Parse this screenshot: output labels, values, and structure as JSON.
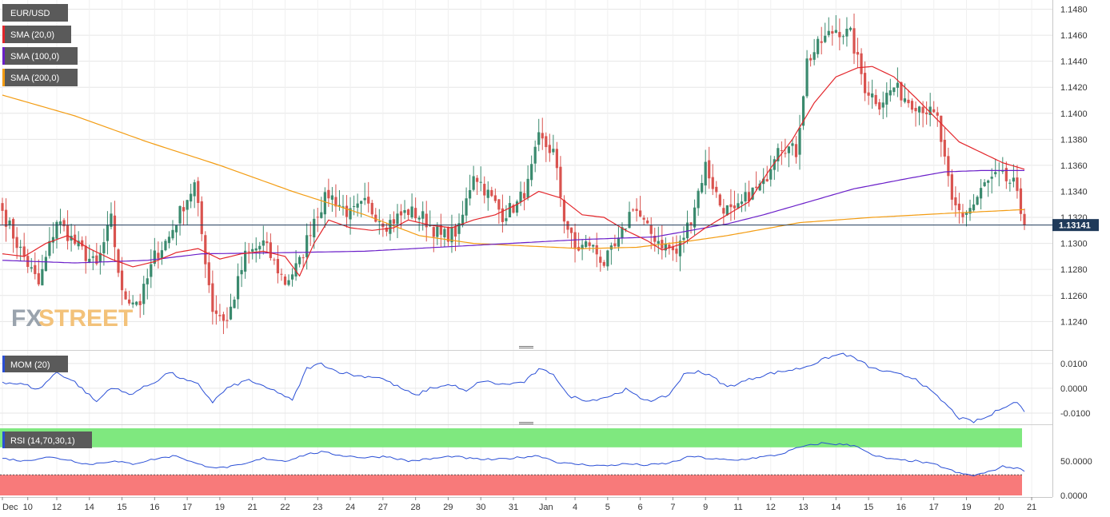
{
  "colors": {
    "up": "#3a8a6e",
    "down": "#d9534f",
    "sma20": "#e3262b",
    "sma100": "#6a1fc9",
    "sma200": "#f39c12",
    "mom": "#2a4fd6",
    "rsi": "#2a4fd6",
    "rsi_overbought": "#7fe87f",
    "rsi_oversold": "#f87a7a",
    "price_line": "#1f3a5a",
    "legend_bg": "#5a5a5a",
    "grid": "#e6e6e6",
    "watermark_fx": "#9aa3ad",
    "watermark_street": "#f3c27a"
  },
  "legends": {
    "pair": "EUR/USD",
    "sma20": "SMA (20,0)",
    "sma100": "SMA (100,0)",
    "sma200": "SMA (200,0)",
    "mom": "MOM (20)",
    "rsi": "RSI (14,70,30,1)"
  },
  "watermark": {
    "fx": "FX",
    "street": "STREET"
  },
  "last_price_label": "1.13141",
  "chart_data": {
    "type": "candlestick",
    "symbol": "EUR/USD",
    "last_price": 1.13141,
    "price_axis": {
      "ylim": [
        1.1223,
        1.1484
      ],
      "ticks": [
        "1.1480",
        "1.1460",
        "1.1440",
        "1.1420",
        "1.1400",
        "1.1380",
        "1.1360",
        "1.1340",
        "1.1320",
        "1.1300",
        "1.1280",
        "1.1260",
        "1.1240"
      ]
    },
    "mom_axis": {
      "ylim": [
        -0.0142,
        0.0148
      ],
      "ticks": [
        "0.0100",
        "0.0000",
        "-0.0100"
      ]
    },
    "rsi_axis": {
      "ylim": [
        0,
        100
      ],
      "ticks": [
        "50.0000",
        "0.0000"
      ],
      "overbought": 70,
      "oversold": 30
    },
    "x_labels": [
      {
        "label": "Dec",
        "i": 0
      },
      {
        "label": "10",
        "i": 7
      },
      {
        "label": "12",
        "i": 15
      },
      {
        "label": "14",
        "i": 24
      },
      {
        "label": "15",
        "i": 33
      },
      {
        "label": "16",
        "i": 42
      },
      {
        "label": "17",
        "i": 51
      },
      {
        "label": "19",
        "i": 60
      },
      {
        "label": "21",
        "i": 69
      },
      {
        "label": "22",
        "i": 78
      },
      {
        "label": "23",
        "i": 87
      },
      {
        "label": "24",
        "i": 96
      },
      {
        "label": "27",
        "i": 105
      },
      {
        "label": "28",
        "i": 114
      },
      {
        "label": "29",
        "i": 123
      },
      {
        "label": "30",
        "i": 132
      },
      {
        "label": "31",
        "i": 141
      },
      {
        "label": "Jan",
        "i": 150
      },
      {
        "label": "4",
        "i": 158
      },
      {
        "label": "5",
        "i": 167
      },
      {
        "label": "6",
        "i": 176
      },
      {
        "label": "7",
        "i": 185
      },
      {
        "label": "9",
        "i": 194
      },
      {
        "label": "11",
        "i": 203
      },
      {
        "label": "12",
        "i": 212
      },
      {
        "label": "13",
        "i": 221
      },
      {
        "label": "14",
        "i": 230
      },
      {
        "label": "15",
        "i": 239
      },
      {
        "label": "16",
        "i": 248
      },
      {
        "label": "17",
        "i": 257
      },
      {
        "label": "19",
        "i": 266
      },
      {
        "label": "20",
        "i": 275
      },
      {
        "label": "21",
        "i": 284
      }
    ],
    "close_anchors": [
      [
        0,
        1.1325
      ],
      [
        4,
        1.13
      ],
      [
        10,
        1.1268
      ],
      [
        15,
        1.1318
      ],
      [
        20,
        1.13
      ],
      [
        26,
        1.1282
      ],
      [
        30,
        1.1318
      ],
      [
        33,
        1.126
      ],
      [
        38,
        1.1255
      ],
      [
        42,
        1.129
      ],
      [
        46,
        1.1305
      ],
      [
        50,
        1.133
      ],
      [
        53,
        1.1345
      ],
      [
        58,
        1.125
      ],
      [
        62,
        1.124
      ],
      [
        67,
        1.129
      ],
      [
        72,
        1.13
      ],
      [
        78,
        1.127
      ],
      [
        82,
        1.1285
      ],
      [
        86,
        1.132
      ],
      [
        90,
        1.1338
      ],
      [
        96,
        1.1322
      ],
      [
        100,
        1.133
      ],
      [
        106,
        1.1315
      ],
      [
        112,
        1.1325
      ],
      [
        116,
        1.132
      ],
      [
        121,
        1.1305
      ],
      [
        126,
        1.131
      ],
      [
        130,
        1.1355
      ],
      [
        134,
        1.1338
      ],
      [
        138,
        1.1322
      ],
      [
        142,
        1.133
      ],
      [
        145,
        1.1345
      ],
      [
        148,
        1.138
      ],
      [
        152,
        1.137
      ],
      [
        155,
        1.132
      ],
      [
        158,
        1.1295
      ],
      [
        162,
        1.13
      ],
      [
        166,
        1.1285
      ],
      [
        170,
        1.13
      ],
      [
        174,
        1.133
      ],
      [
        178,
        1.131
      ],
      [
        182,
        1.13
      ],
      [
        186,
        1.1292
      ],
      [
        190,
        1.132
      ],
      [
        194,
        1.136
      ],
      [
        198,
        1.133
      ],
      [
        202,
        1.1322
      ],
      [
        206,
        1.1338
      ],
      [
        210,
        1.1345
      ],
      [
        214,
        1.1378
      ],
      [
        219,
        1.137
      ],
      [
        222,
        1.144
      ],
      [
        226,
        1.1455
      ],
      [
        230,
        1.1465
      ],
      [
        234,
        1.146
      ],
      [
        238,
        1.142
      ],
      [
        242,
        1.1408
      ],
      [
        246,
        1.142
      ],
      [
        250,
        1.141
      ],
      [
        254,
        1.1405
      ],
      [
        258,
        1.1395
      ],
      [
        262,
        1.133
      ],
      [
        265,
        1.1322
      ],
      [
        268,
        1.133
      ],
      [
        271,
        1.1345
      ],
      [
        275,
        1.1352
      ],
      [
        279,
        1.1345
      ],
      [
        282,
        1.1314
      ]
    ],
    "sma20_anchors": [
      [
        0,
        1.1292
      ],
      [
        6,
        1.129
      ],
      [
        12,
        1.13
      ],
      [
        18,
        1.1306
      ],
      [
        24,
        1.1296
      ],
      [
        30,
        1.1288
      ],
      [
        36,
        1.1282
      ],
      [
        42,
        1.1286
      ],
      [
        48,
        1.1293
      ],
      [
        54,
        1.1296
      ],
      [
        60,
        1.1288
      ],
      [
        66,
        1.1292
      ],
      [
        72,
        1.1294
      ],
      [
        78,
        1.129
      ],
      [
        82,
        1.1275
      ],
      [
        86,
        1.13
      ],
      [
        90,
        1.1318
      ],
      [
        96,
        1.1312
      ],
      [
        102,
        1.131
      ],
      [
        108,
        1.1312
      ],
      [
        112,
        1.1318
      ],
      [
        118,
        1.1314
      ],
      [
        124,
        1.1312
      ],
      [
        130,
        1.1318
      ],
      [
        136,
        1.1322
      ],
      [
        142,
        1.133
      ],
      [
        148,
        1.134
      ],
      [
        154,
        1.1335
      ],
      [
        160,
        1.1322
      ],
      [
        166,
        1.132
      ],
      [
        172,
        1.131
      ],
      [
        178,
        1.1302
      ],
      [
        182,
        1.1295
      ],
      [
        188,
        1.13
      ],
      [
        194,
        1.1312
      ],
      [
        200,
        1.1322
      ],
      [
        206,
        1.1332
      ],
      [
        212,
        1.1358
      ],
      [
        218,
        1.138
      ],
      [
        224,
        1.1408
      ],
      [
        230,
        1.1428
      ],
      [
        236,
        1.1435
      ],
      [
        240,
        1.1436
      ],
      [
        246,
        1.1428
      ],
      [
        252,
        1.1412
      ],
      [
        258,
        1.1395
      ],
      [
        264,
        1.1378
      ],
      [
        270,
        1.137
      ],
      [
        276,
        1.1362
      ],
      [
        282,
        1.1357
      ]
    ],
    "sma100_anchors": [
      [
        0,
        1.1287
      ],
      [
        20,
        1.1285
      ],
      [
        40,
        1.1287
      ],
      [
        55,
        1.1292
      ],
      [
        80,
        1.1293
      ],
      [
        100,
        1.1294
      ],
      [
        120,
        1.1297
      ],
      [
        140,
        1.13
      ],
      [
        160,
        1.1303
      ],
      [
        180,
        1.1305
      ],
      [
        200,
        1.1315
      ],
      [
        210,
        1.1322
      ],
      [
        220,
        1.133
      ],
      [
        235,
        1.1342
      ],
      [
        250,
        1.135
      ],
      [
        260,
        1.1355
      ],
      [
        270,
        1.1356
      ],
      [
        282,
        1.1356
      ]
    ],
    "sma200_anchors": [
      [
        0,
        1.1414
      ],
      [
        20,
        1.1398
      ],
      [
        40,
        1.1378
      ],
      [
        60,
        1.136
      ],
      [
        80,
        1.134
      ],
      [
        100,
        1.1322
      ],
      [
        115,
        1.1306
      ],
      [
        130,
        1.13
      ],
      [
        145,
        1.1298
      ],
      [
        160,
        1.1296
      ],
      [
        175,
        1.1297
      ],
      [
        190,
        1.1302
      ],
      [
        200,
        1.1306
      ],
      [
        220,
        1.1316
      ],
      [
        240,
        1.132
      ],
      [
        260,
        1.1323
      ],
      [
        282,
        1.1326
      ]
    ],
    "mom_anchors": [
      [
        0,
        0.0025
      ],
      [
        6,
        0.0015
      ],
      [
        10,
        -0.0005
      ],
      [
        15,
        0.0065
      ],
      [
        20,
        0.0025
      ],
      [
        26,
        -0.0055
      ],
      [
        30,
        0.0005
      ],
      [
        35,
        -0.0025
      ],
      [
        42,
        0.0025
      ],
      [
        46,
        0.0065
      ],
      [
        50,
        0.0035
      ],
      [
        54,
        0.0015
      ],
      [
        58,
        -0.0055
      ],
      [
        62,
        0.0
      ],
      [
        68,
        0.0035
      ],
      [
        72,
        0.0005
      ],
      [
        76,
        -0.0015
      ],
      [
        80,
        -0.005
      ],
      [
        84,
        0.008
      ],
      [
        88,
        0.01
      ],
      [
        92,
        0.007
      ],
      [
        98,
        0.005
      ],
      [
        104,
        0.0045
      ],
      [
        110,
        0.0
      ],
      [
        114,
        -0.003
      ],
      [
        118,
        0.0
      ],
      [
        124,
        0.0015
      ],
      [
        128,
        -0.0015
      ],
      [
        132,
        0.003
      ],
      [
        138,
        0.0015
      ],
      [
        144,
        0.0025
      ],
      [
        148,
        0.0075
      ],
      [
        152,
        0.006
      ],
      [
        156,
        -0.003
      ],
      [
        162,
        -0.005
      ],
      [
        168,
        -0.003
      ],
      [
        172,
        -0.0005
      ],
      [
        176,
        -0.004
      ],
      [
        180,
        -0.005
      ],
      [
        184,
        -0.0025
      ],
      [
        188,
        0.0055
      ],
      [
        192,
        0.007
      ],
      [
        196,
        0.0045
      ],
      [
        200,
        0.0005
      ],
      [
        204,
        0.0025
      ],
      [
        208,
        0.0045
      ],
      [
        212,
        0.006
      ],
      [
        216,
        0.007
      ],
      [
        220,
        0.008
      ],
      [
        224,
        0.01
      ],
      [
        228,
        0.0125
      ],
      [
        232,
        0.014
      ],
      [
        236,
        0.0115
      ],
      [
        240,
        0.008
      ],
      [
        246,
        0.006
      ],
      [
        252,
        0.004
      ],
      [
        256,
        -0.001
      ],
      [
        260,
        -0.006
      ],
      [
        264,
        -0.012
      ],
      [
        268,
        -0.0135
      ],
      [
        272,
        -0.0115
      ],
      [
        276,
        -0.0075
      ],
      [
        280,
        -0.0055
      ],
      [
        282,
        -0.0095
      ]
    ],
    "rsi_anchors": [
      [
        0,
        54
      ],
      [
        6,
        50
      ],
      [
        12,
        56
      ],
      [
        18,
        52
      ],
      [
        24,
        45
      ],
      [
        30,
        50
      ],
      [
        36,
        46
      ],
      [
        42,
        53
      ],
      [
        48,
        58
      ],
      [
        54,
        45
      ],
      [
        60,
        40
      ],
      [
        66,
        44
      ],
      [
        72,
        54
      ],
      [
        78,
        50
      ],
      [
        84,
        60
      ],
      [
        88,
        63
      ],
      [
        94,
        58
      ],
      [
        100,
        55
      ],
      [
        106,
        57
      ],
      [
        112,
        50
      ],
      [
        118,
        53
      ],
      [
        124,
        57
      ],
      [
        130,
        53
      ],
      [
        136,
        52
      ],
      [
        142,
        55
      ],
      [
        148,
        58
      ],
      [
        154,
        47
      ],
      [
        160,
        45
      ],
      [
        166,
        43
      ],
      [
        172,
        46
      ],
      [
        178,
        44
      ],
      [
        184,
        47
      ],
      [
        190,
        57
      ],
      [
        196,
        53
      ],
      [
        202,
        51
      ],
      [
        208,
        55
      ],
      [
        214,
        59
      ],
      [
        220,
        70
      ],
      [
        226,
        76
      ],
      [
        232,
        74
      ],
      [
        236,
        72
      ],
      [
        240,
        58
      ],
      [
        246,
        52
      ],
      [
        252,
        50
      ],
      [
        258,
        44
      ],
      [
        264,
        32
      ],
      [
        268,
        29
      ],
      [
        272,
        34
      ],
      [
        276,
        42
      ],
      [
        280,
        40
      ],
      [
        282,
        35
      ]
    ]
  }
}
